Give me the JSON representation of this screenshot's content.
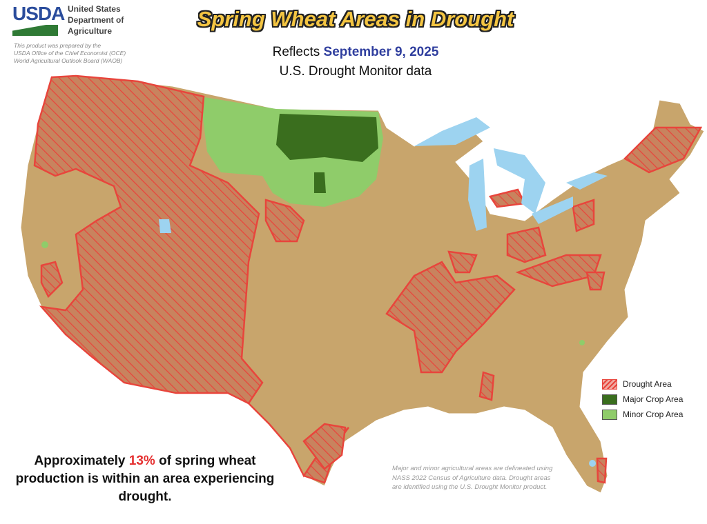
{
  "header": {
    "logo": "USDA",
    "agency_lines": [
      "United States",
      "Department of",
      "Agriculture"
    ],
    "credit_lines": [
      "This product was prepared by the",
      "USDA Office of the Chief Economist (OCE)",
      "World Agricultural Outlook Board (WAOB)"
    ],
    "title": "Spring Wheat Areas in Drought",
    "reflects_label": "Reflects",
    "date": "September 9, 2025",
    "source": "U.S. Drought Monitor data"
  },
  "legend": {
    "items": [
      {
        "label": "Drought Area",
        "color": "#e8453c"
      },
      {
        "label": "Major Crop Area",
        "color": "#3a6e1e"
      },
      {
        "label": "Minor Crop Area",
        "color": "#8fcc6a"
      }
    ]
  },
  "summary": {
    "prefix": "Approximately ",
    "percent": "13%",
    "suffix": " of spring wheat production is within an area experiencing drought."
  },
  "note": "Major and minor agricultural areas are delineated using NASS 2022 Census of Agriculture data.  Drought areas are identified using the U.S. Drought Monitor product.",
  "colors": {
    "land": "#c8a56c",
    "water": "#9dd3f0",
    "drought": "#e8453c",
    "major": "#3a6e1e",
    "minor": "#8fcc6a"
  }
}
